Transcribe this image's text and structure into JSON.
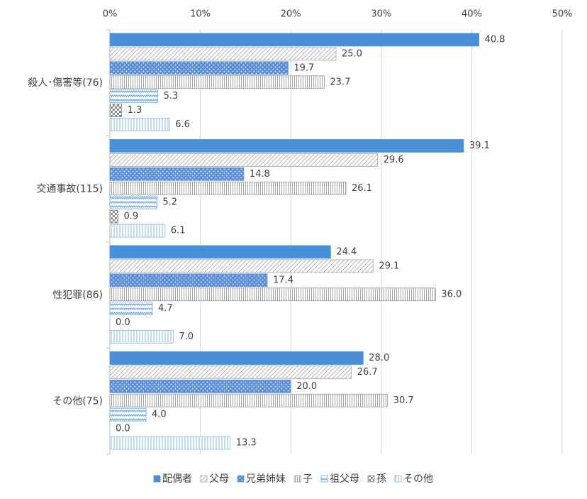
{
  "chart_data": {
    "type": "bar",
    "orientation": "horizontal",
    "categories": [
      "殺人･傷害等(76)",
      "交通事故(115)",
      "性犯罪(86)",
      "その他(75)"
    ],
    "series": [
      {
        "name": "配偶者",
        "color": "#4a90d9",
        "values": [
          40.8,
          39.1,
          24.4,
          28.0
        ],
        "value_labels": [
          "40.8",
          "39.1",
          "24.4",
          "28.0"
        ]
      },
      {
        "name": "父母",
        "color": "#a6a6a6",
        "values": [
          25.0,
          29.6,
          29.1,
          26.7
        ],
        "value_labels": [
          "25.0",
          "29.6",
          "29.1",
          "26.7"
        ]
      },
      {
        "name": "兄弟姉妹",
        "color": "#5b8fd9",
        "values": [
          19.7,
          14.8,
          17.4,
          20.0
        ],
        "value_labels": [
          "19.7",
          "14.8",
          "17.4",
          "20.0"
        ]
      },
      {
        "name": "子",
        "color": "#9a9a9a",
        "values": [
          23.7,
          26.1,
          36.0,
          30.7
        ],
        "value_labels": [
          "23.7",
          "26.1",
          "36.0",
          "30.7"
        ]
      },
      {
        "name": "祖父母",
        "color": "#6fa8e0",
        "values": [
          5.3,
          5.2,
          4.7,
          4.0
        ],
        "value_labels": [
          "5.3",
          "5.2",
          "4.7",
          "4.0"
        ]
      },
      {
        "name": "孫",
        "color": "#8c8c8c",
        "values": [
          1.3,
          0.9,
          0.0,
          0.0
        ],
        "value_labels": [
          "1.3",
          "0.9",
          "0.0",
          "0.0"
        ]
      },
      {
        "name": "その他",
        "color": "#8fb8e6",
        "values": [
          6.6,
          6.1,
          7.0,
          13.3
        ],
        "value_labels": [
          "6.6",
          "6.1",
          "7.0",
          "13.3"
        ]
      }
    ],
    "xlim": [
      0,
      50
    ],
    "xticks": [
      {
        "value": 0,
        "label": "0%"
      },
      {
        "value": 10,
        "label": "10%"
      },
      {
        "value": 20,
        "label": "20%"
      },
      {
        "value": 30,
        "label": "30%"
      },
      {
        "value": 40,
        "label": "40%"
      },
      {
        "value": 50,
        "label": "50%"
      }
    ],
    "grid": true,
    "legend": "bottom"
  }
}
